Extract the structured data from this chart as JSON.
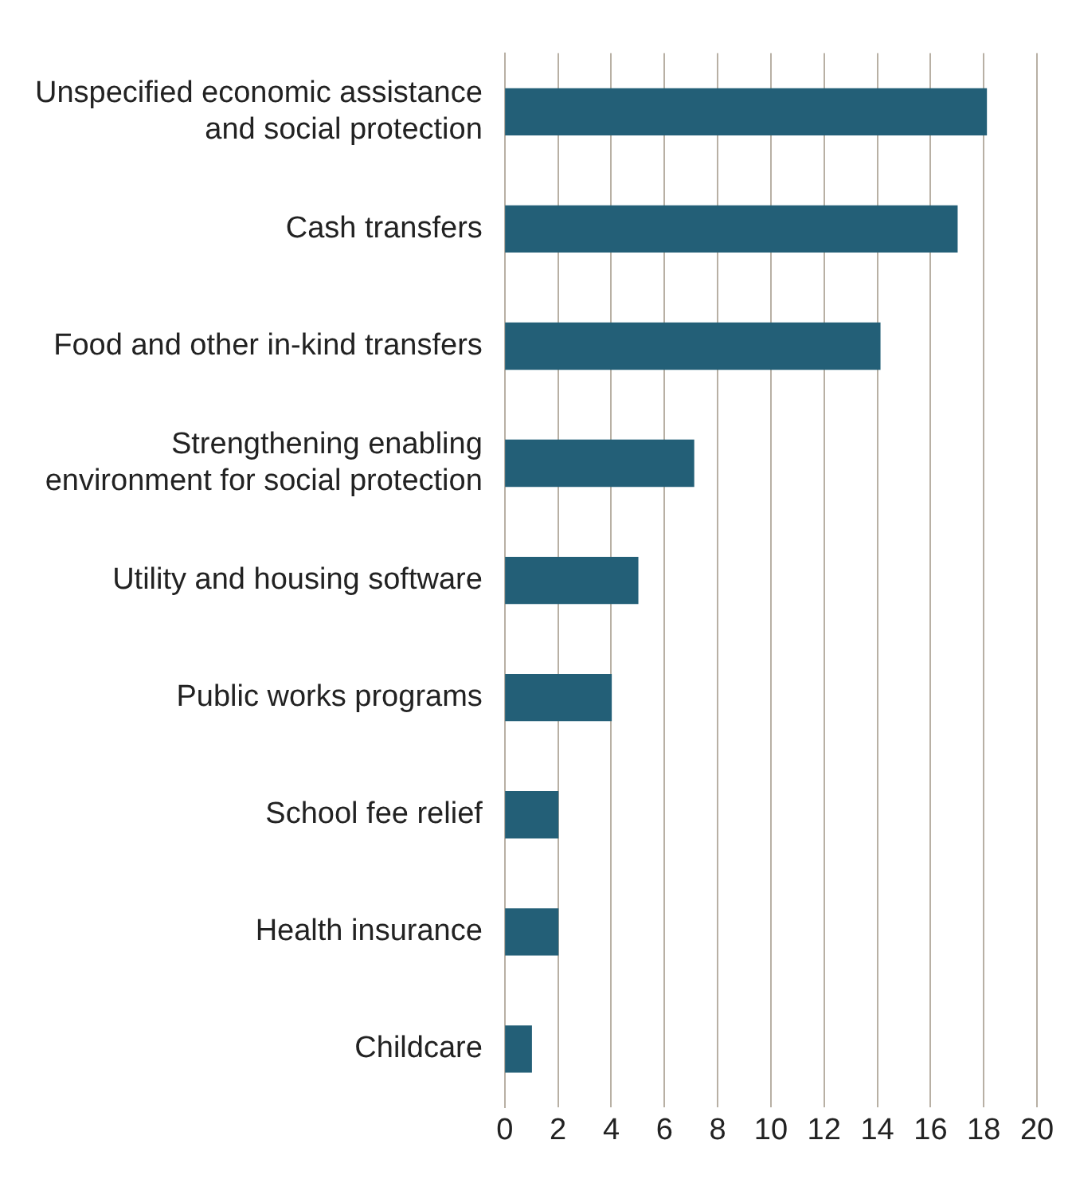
{
  "chart_data": {
    "type": "bar",
    "orientation": "horizontal",
    "categories": [
      "Unspecified economic assistance and social protection",
      "Cash transfers",
      "Food and other in-kind transfers",
      "Strengthening enabling environment for social protection",
      "Utility and housing software",
      "Public works programs",
      "School fee relief",
      "Health insurance",
      "Childcare"
    ],
    "values": [
      18.1,
      17,
      14.1,
      7.1,
      5,
      4,
      2,
      2,
      1
    ],
    "color": "#235f77",
    "xlim": [
      0,
      20
    ],
    "xticks": [
      0,
      2,
      4,
      6,
      8,
      10,
      12,
      14,
      16,
      18,
      20
    ],
    "grid": "x",
    "legend": false
  }
}
